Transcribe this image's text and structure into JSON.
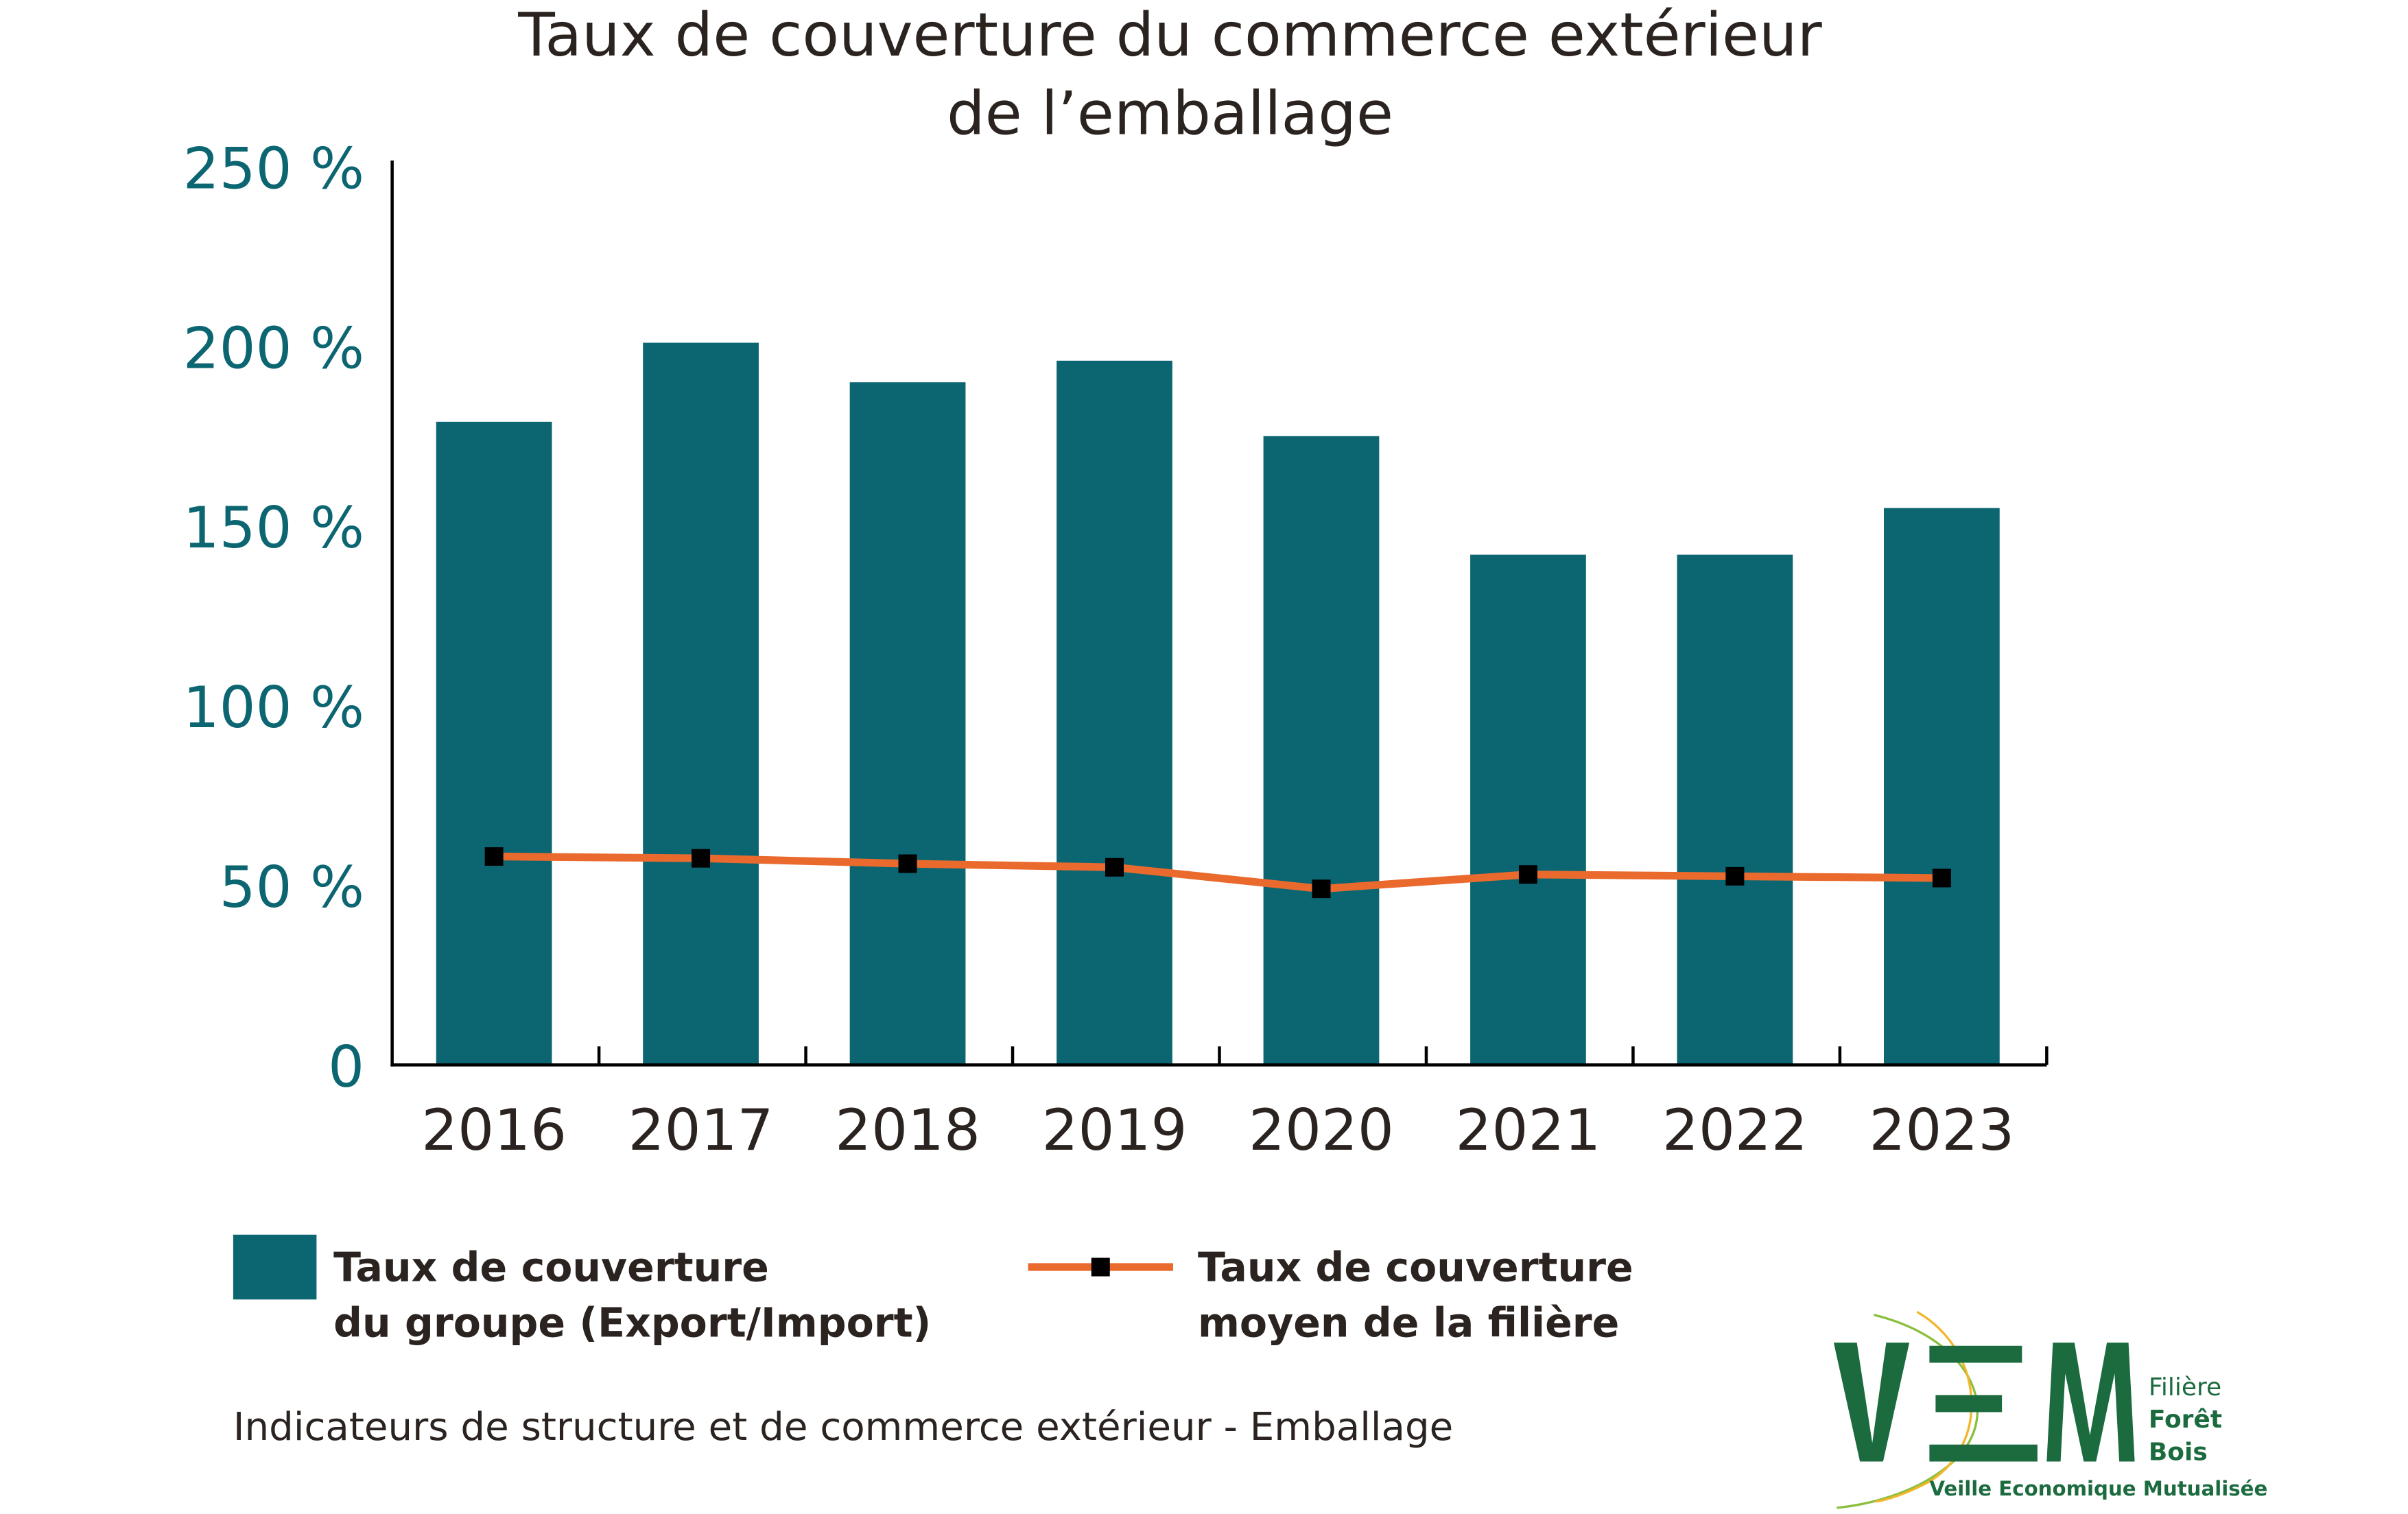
{
  "chart_data": {
    "type": "bar",
    "title_line1": "Taux de couverture du commerce extérieur",
    "title_line2": "de l’emballage",
    "categories": [
      "2016",
      "2017",
      "2018",
      "2019",
      "2020",
      "2021",
      "2022",
      "2023"
    ],
    "series": [
      {
        "name": "Taux de couverture du groupe (Export/Import)",
        "type": "bar",
        "unit": "%",
        "values": [
          179,
          201,
          190,
          196,
          175,
          142,
          142,
          155
        ],
        "color": "#0c6672"
      },
      {
        "name": "Taux de couverture moyen de la filière",
        "type": "line",
        "unit": "%",
        "values": [
          58,
          57.5,
          56,
          55,
          49,
          53,
          52.5,
          52
        ],
        "color": "#ea6a2d",
        "marker_color": "#000000"
      }
    ],
    "ylim": [
      0,
      250
    ],
    "yticks": [
      0,
      50,
      100,
      150,
      200,
      250
    ],
    "ytick_labels": [
      "0",
      "50 %",
      "100 %",
      "150 %",
      "200 %",
      "250 %"
    ],
    "grid": false,
    "legend_position": "bottom",
    "legend": {
      "bar_line1": "Taux de couverture",
      "bar_line2": "du groupe (Export/Import)",
      "line_line1": "Taux de couverture",
      "line_line2": "moyen de la filière"
    },
    "caption": "Indicateurs de structure et de commerce extérieur - Emballage"
  },
  "logo": {
    "letters": "VEM",
    "line1": "Filière",
    "line2": "Forêt",
    "line3": "Bois",
    "tagline": "Veille Economique Mutualisée",
    "color": "#1c6b3f"
  }
}
